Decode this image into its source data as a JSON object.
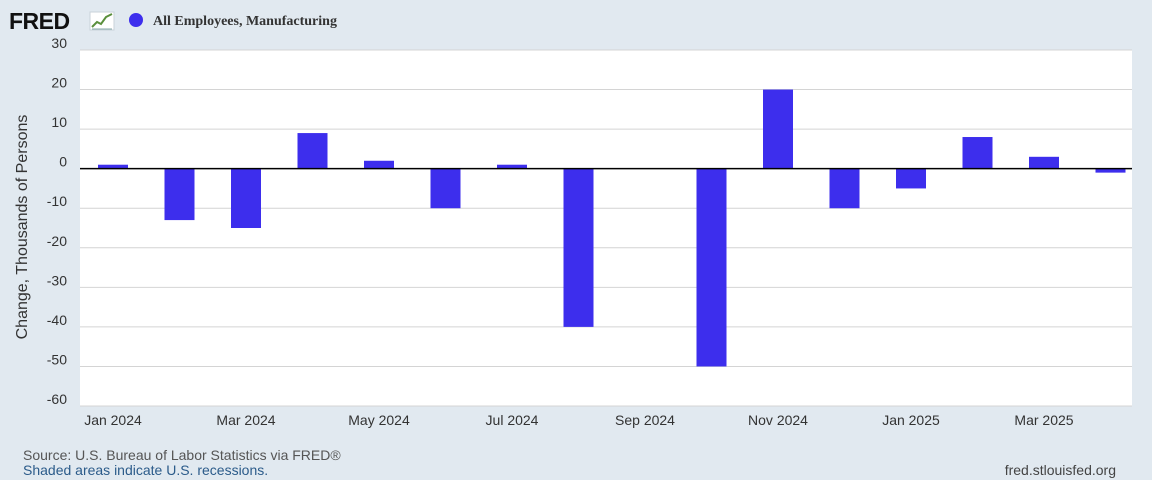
{
  "header": {
    "logo_text": "FRED",
    "series_name": "All Employees, Manufacturing",
    "series_color": "#3d2eed"
  },
  "chart_data": {
    "type": "bar",
    "categories": [
      "Jan 2024",
      "Feb 2024",
      "Mar 2024",
      "Apr 2024",
      "May 2024",
      "Jun 2024",
      "Jul 2024",
      "Aug 2024",
      "Sep 2024",
      "Oct 2024",
      "Nov 2024",
      "Dec 2024",
      "Jan 2025",
      "Feb 2025",
      "Mar 2025",
      "Apr 2025"
    ],
    "series": [
      {
        "name": "All Employees, Manufacturing",
        "values": [
          1,
          -13,
          -15,
          9,
          2,
          -10,
          1,
          -40,
          0,
          -50,
          20,
          -10,
          -5,
          8,
          3,
          -1
        ],
        "color": "#3d2eed"
      }
    ],
    "xtick_labels": [
      "Jan 2024",
      "Mar 2024",
      "May 2024",
      "Jul 2024",
      "Sep 2024",
      "Nov 2024",
      "Jan 2025",
      "Mar 2025"
    ],
    "yticks": [
      30,
      20,
      10,
      0,
      -10,
      -20,
      -30,
      -40,
      -50,
      -60
    ],
    "ylim": [
      -60,
      30
    ],
    "xlabel": "",
    "ylabel": "Change, Thousands of Persons",
    "grid": true,
    "legend_position": "top-left"
  },
  "footer": {
    "source": "Source: U.S. Bureau of Labor Statistics via FRED®",
    "shaded_note": "Shaded areas indicate U.S. recessions.",
    "site": "fred.stlouisfed.org"
  }
}
